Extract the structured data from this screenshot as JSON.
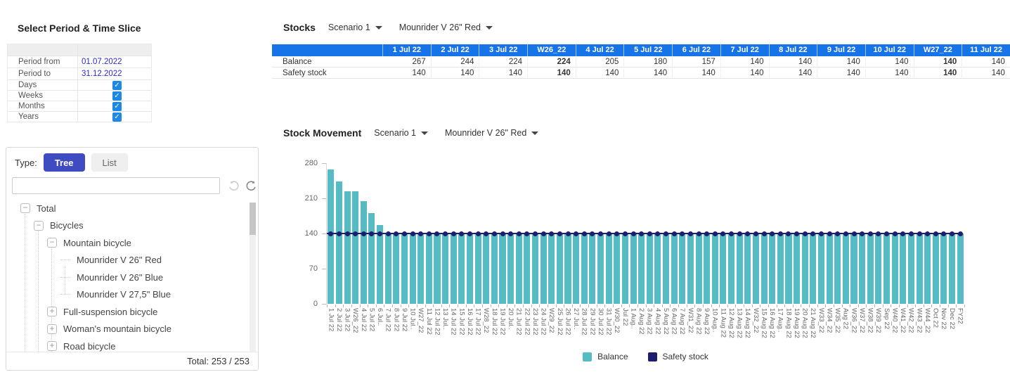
{
  "colors": {
    "header_blue": "#1673e8",
    "link_blue": "#2b2bd2",
    "checkbox_blue": "#1e88e5",
    "tree_active_blue": "#3f4bc0",
    "bar_teal": "#56bcc4",
    "dot_navy": "#1b1f6e"
  },
  "period": {
    "title": "Select Period & Time Slice",
    "rows": [
      {
        "label": "Period from",
        "kind": "date",
        "value": "01.07.2022"
      },
      {
        "label": "Period to",
        "kind": "date",
        "value": "31.12.2022"
      },
      {
        "label": "Days",
        "kind": "check",
        "checked": true
      },
      {
        "label": "Weeks",
        "kind": "check",
        "checked": true
      },
      {
        "label": "Months",
        "kind": "check",
        "checked": true
      },
      {
        "label": "Years",
        "kind": "check",
        "checked": true
      }
    ]
  },
  "catalog": {
    "type_label": "Type:",
    "tree_button": "Tree",
    "list_button": "List",
    "search_value": "",
    "icons": [
      "rotate-ccw-icon",
      "refresh-icon"
    ],
    "tree_items": [
      {
        "label": "Total",
        "level": 0,
        "expander": "minus"
      },
      {
        "label": "Bicycles",
        "level": 1,
        "expander": "minus"
      },
      {
        "label": "Mountain bicycle",
        "level": 2,
        "expander": "minus"
      },
      {
        "label": "Mounrider V 26\" Red",
        "level": 3,
        "expander": "leaf"
      },
      {
        "label": "Mounrider V 26\" Blue",
        "level": 3,
        "expander": "leaf"
      },
      {
        "label": "Mounrider V 27,5\" Blue",
        "level": 3,
        "expander": "leaf"
      },
      {
        "label": "Full-suspension bicycle",
        "level": 2,
        "expander": "plus"
      },
      {
        "label": "Woman's mountain bicycle",
        "level": 2,
        "expander": "plus"
      },
      {
        "label": "Road bicycle",
        "level": 2,
        "expander": "plus"
      },
      {
        "label": "",
        "level": 2,
        "expander": "plus"
      }
    ],
    "footer_label": "Total: 253 / 253"
  },
  "stocks": {
    "title": "Stocks",
    "scenario": "Scenario 1",
    "product": "Mounrider V 26\" Red",
    "columns": [
      "1 Jul 22",
      "2 Jul 22",
      "3 Jul 22",
      "W26_22",
      "4 Jul 22",
      "5 Jul 22",
      "6 Jul 22",
      "7 Jul 22",
      "8 Jul 22",
      "9 Jul 22",
      "10 Jul 22",
      "W27_22",
      "11 Jul 22"
    ],
    "bold_columns": [
      3,
      11
    ],
    "rows": [
      {
        "label": "Balance",
        "values": [
          267,
          244,
          224,
          224,
          205,
          180,
          157,
          140,
          140,
          140,
          140,
          140,
          140
        ]
      },
      {
        "label": "Safety stock",
        "values": [
          140,
          140,
          140,
          140,
          140,
          140,
          140,
          140,
          140,
          140,
          140,
          140,
          140
        ]
      }
    ]
  },
  "movement": {
    "title": "Stock Movement",
    "scenario": "Scenario 1",
    "product": "Mounrider V 26\" Red"
  },
  "chart_data": {
    "type": "bar",
    "title": "Stock Movement",
    "xlabel": "",
    "ylabel": "",
    "ylim": [
      0,
      280
    ],
    "yticks": [
      0,
      70,
      140,
      210,
      280
    ],
    "grid": false,
    "legend_position": "bottom",
    "categories": [
      "1 Jul 22",
      "2 Jul 22",
      "3 Jul 22",
      "W26_22",
      "4 Jul 22",
      "5 Jul 22",
      "6 Jul..",
      "7 Jul 22",
      "8 Jul 22",
      "9 Jul 22",
      "10 Jul..",
      "W27_22",
      "11 Jul 22",
      "12 Jul 22",
      "13 Jul..",
      "14 Jul 22",
      "15 Jul 22",
      "16 Jul 22",
      "17 Jul 22",
      "W28_22",
      "18 Jul 22",
      "19 Jul 22",
      "20 Jul..",
      "21 Jul 22",
      "22 Jul 22",
      "23 Jul 22",
      "24 Jul 22",
      "W29_22",
      "25 Jul 22",
      "26 Jul 22",
      "27 Jul..",
      "28 Jul 22",
      "29 Jul 22",
      "30 Jul 22",
      "31 Jul 22",
      "W30_22",
      "Jul 22",
      "1 Aug..",
      "2 Aug 22",
      "3 Aug 22",
      "4 Aug 22",
      "5 Aug 22",
      "6 Aug 22",
      "7 Aug 22",
      "W31_22",
      "8 Aug 22",
      "9 Aug 22",
      "10 Aug..",
      "11 Aug 22",
      "12 Aug 22",
      "13 Aug 22",
      "14 Aug 22",
      "W32_22",
      "15 Aug 22",
      "16 Aug 22",
      "17 Aug..",
      "18 Aug 22",
      "19 Aug 22",
      "20 Aug 22",
      "21 Aug 22",
      "W33_22",
      "W34_22",
      "W35_22",
      "Aug 22",
      "W36_22",
      "W37_22",
      "W38_22",
      "W39_22",
      "Sep 22",
      "W40_22",
      "W41_22",
      "W42_22",
      "W43_22",
      "W44_22",
      "Oct 22",
      "Nov 22",
      "Dec 22",
      "FY22"
    ],
    "series": [
      {
        "name": "Balance",
        "render": "bar",
        "color": "#56bcc4",
        "values": [
          267,
          244,
          224,
          224,
          205,
          180,
          157,
          140,
          140,
          140,
          140,
          140,
          140,
          140,
          140,
          140,
          140,
          140,
          140,
          140,
          140,
          140,
          140,
          140,
          140,
          140,
          140,
          140,
          140,
          140,
          140,
          140,
          140,
          140,
          140,
          140,
          140,
          140,
          140,
          140,
          140,
          140,
          140,
          140,
          140,
          140,
          140,
          140,
          140,
          140,
          140,
          140,
          140,
          140,
          140,
          140,
          140,
          140,
          140,
          140,
          140,
          140,
          140,
          140,
          140,
          140,
          140,
          140,
          140,
          140,
          140,
          140,
          140,
          140,
          140,
          140,
          140,
          140
        ]
      },
      {
        "name": "Safety stock",
        "render": "line-markers",
        "color": "#1b1f6e",
        "values": [
          140,
          140,
          140,
          140,
          140,
          140,
          140,
          140,
          140,
          140,
          140,
          140,
          140,
          140,
          140,
          140,
          140,
          140,
          140,
          140,
          140,
          140,
          140,
          140,
          140,
          140,
          140,
          140,
          140,
          140,
          140,
          140,
          140,
          140,
          140,
          140,
          140,
          140,
          140,
          140,
          140,
          140,
          140,
          140,
          140,
          140,
          140,
          140,
          140,
          140,
          140,
          140,
          140,
          140,
          140,
          140,
          140,
          140,
          140,
          140,
          140,
          140,
          140,
          140,
          140,
          140,
          140,
          140,
          140,
          140,
          140,
          140,
          140,
          140,
          140,
          140,
          140,
          140
        ]
      }
    ]
  }
}
